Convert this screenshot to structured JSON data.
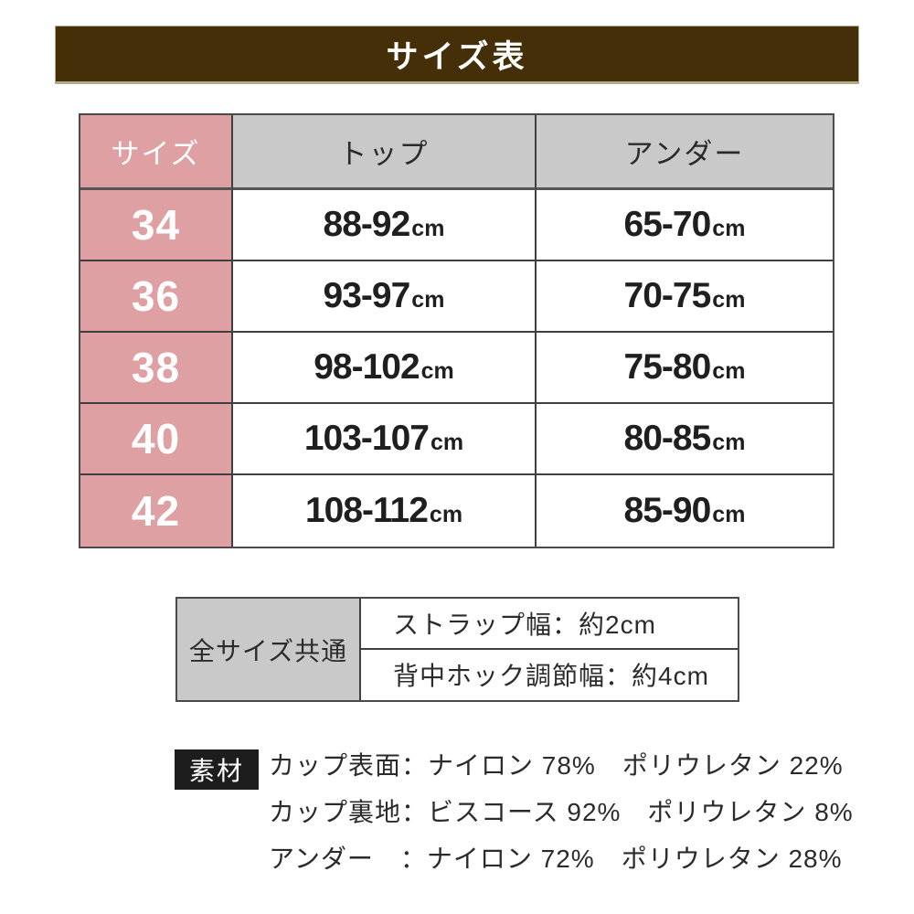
{
  "page": {
    "title": "サイズ表"
  },
  "size_table": {
    "headers": {
      "size": "サイズ",
      "top": "トップ",
      "under": "アンダー"
    },
    "unit": "cm",
    "rows": [
      {
        "size": "34",
        "top": "88-92",
        "under": "65-70"
      },
      {
        "size": "36",
        "top": "93-97",
        "under": "70-75"
      },
      {
        "size": "38",
        "top": "98-102",
        "under": "75-80"
      },
      {
        "size": "40",
        "top": "103-107",
        "under": "80-85"
      },
      {
        "size": "42",
        "top": "108-112",
        "under": "85-90"
      }
    ]
  },
  "common_table": {
    "label": "全サイズ共通",
    "rows": [
      {
        "text": "ストラップ幅：約2cm"
      },
      {
        "text": "背中ホック調節幅：約4cm"
      }
    ]
  },
  "materials": {
    "label": "素材",
    "lines": [
      "カップ表面：ナイロン 78%　ポリウレタン 22%",
      "カップ裏地：ビスコース 92%　ポリウレタン 8%",
      "アンダー　：ナイロン 72%　ポリウレタン 28%"
    ]
  },
  "colors": {
    "banner_bg": "#452f08",
    "banner_border": "#b2a88c",
    "accent_pink": "#dfa0a3",
    "header_gray": "#c9c9c9",
    "table_border": "#3f3f3f",
    "text_dark": "#2b2b2b",
    "material_label_bg": "#1d1d1d"
  }
}
